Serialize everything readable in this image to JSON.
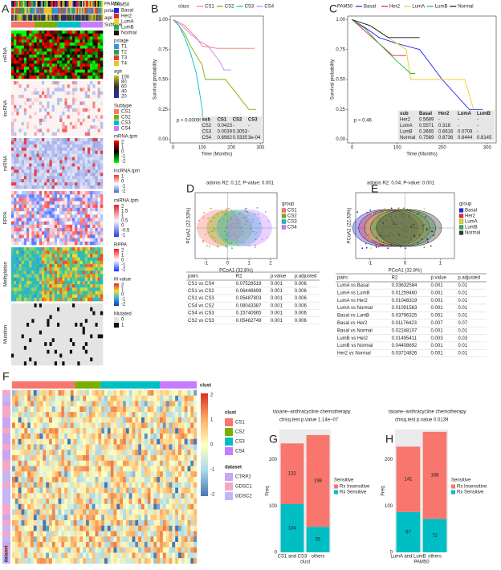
{
  "panels": [
    "A",
    "B",
    "C",
    "D",
    "E",
    "F",
    "G",
    "H"
  ],
  "heatmap_a": {
    "tracks": [
      "PAM50",
      "pstage",
      "age",
      "Subtype"
    ],
    "blocks": [
      "mRNA",
      "lncRNA",
      "miRNA",
      "RPPA",
      "Methylation",
      "Mutation"
    ],
    "legends": [
      {
        "title": "PAM50",
        "items": [
          {
            "label": "Basal",
            "color": "#2222ee"
          },
          {
            "label": "Her2",
            "color": "#e8242a"
          },
          {
            "label": "LumA",
            "color": "#f0d020"
          },
          {
            "label": "LumB",
            "color": "#2ab040"
          },
          {
            "label": "Normal",
            "color": "#111111"
          }
        ]
      },
      {
        "title": "pstage",
        "items": [
          {
            "label": "T1",
            "color": "#3a8fd8"
          },
          {
            "label": "T2",
            "color": "#2aa04a"
          },
          {
            "label": "T3",
            "color": "#e83a3a"
          },
          {
            "label": "T4",
            "color": "#f2c020"
          }
        ]
      },
      {
        "title": "age",
        "ticks": [
          100,
          80,
          60,
          40,
          20
        ],
        "colors": [
          "#c8c820",
          "#30303a",
          "#2a2aa8"
        ]
      },
      {
        "title": "Subtype",
        "items": [
          {
            "label": "CS1",
            "color": "#F8766D"
          },
          {
            "label": "CS2",
            "color": "#7CAE00"
          },
          {
            "label": "CS3",
            "color": "#00BFC4"
          },
          {
            "label": "CS4",
            "color": "#C77CFF"
          }
        ]
      },
      {
        "title": "mRNA.tpm",
        "ticks": [
          2,
          1,
          0,
          -1,
          -2
        ],
        "colors": [
          "#ff0000",
          "#000000",
          "#00ff00"
        ]
      },
      {
        "title": "lncRNA.tpm",
        "ticks": [
          1,
          0,
          -1,
          -2
        ],
        "colors": [
          "#f03030",
          "#ffffff",
          "#3a6ad8"
        ]
      },
      {
        "title": "miRNA.tpm",
        "ticks": [
          2,
          1.5,
          1,
          0.5,
          0,
          -0.5,
          -1
        ],
        "colors": [
          "#e82020",
          "#f4f4ff",
          "#2a40d0"
        ]
      },
      {
        "title": "RPPA",
        "ticks": [
          2,
          1,
          0,
          -1,
          -2
        ],
        "colors": [
          "#ff1010",
          "#ffffff",
          "#1030ff"
        ]
      },
      {
        "title": "M value",
        "ticks": [
          2,
          1,
          0,
          -1,
          -2
        ],
        "colors": [
          "#e82020",
          "#f0e030",
          "#30b0e0",
          "#2030c0"
        ]
      },
      {
        "title": "Mutated",
        "items": [
          {
            "label": "0",
            "color": "#e4e4e4"
          },
          {
            "label": "1",
            "color": "#111111"
          }
        ]
      }
    ]
  },
  "chart_data": [
    {
      "type": "line",
      "legend_title": "class",
      "xlabel": "Time (Months)",
      "ylabel": "Survival probability",
      "annotation": "p = 0.00099",
      "xlim": [
        -10,
        310
      ],
      "ylim": [
        -0.03,
        1.03
      ],
      "xticks": [
        0,
        100,
        200,
        300
      ],
      "yticks": [
        {
          "value": 0,
          "label": "0.00"
        },
        {
          "value": 0.25,
          "label": "0.25"
        },
        {
          "value": 0.5,
          "label": "0.50"
        },
        {
          "value": 0.75,
          "label": "0.75"
        },
        {
          "value": 1,
          "label": "1.00"
        }
      ],
      "series": [
        {
          "name": "CS1",
          "color": "#F8766D",
          "x": [
            0,
            20,
            40,
            60,
            80,
            100,
            150,
            280
          ],
          "values": [
            1,
            0.98,
            0.95,
            0.9,
            0.85,
            0.78,
            0.76,
            0.76
          ]
        },
        {
          "name": "CS2",
          "color": "#7CAE00",
          "x": [
            0,
            20,
            40,
            60,
            80,
            100,
            110,
            180,
            260,
            285
          ],
          "values": [
            1,
            0.95,
            0.88,
            0.78,
            0.7,
            0.62,
            0.5,
            0.5,
            0.25,
            0.25
          ]
        },
        {
          "name": "CS3",
          "color": "#00BFC4",
          "x": [
            0,
            20,
            40,
            60,
            80,
            90,
            100,
            105
          ],
          "values": [
            1,
            0.95,
            0.85,
            0.72,
            0.55,
            0.4,
            0.25,
            0
          ]
        },
        {
          "name": "CS4",
          "color": "#C77CFF",
          "x": [
            0,
            30,
            60,
            90,
            120,
            160,
            175,
            200
          ],
          "values": [
            1,
            0.95,
            0.88,
            0.82,
            0.78,
            0.65,
            0.58,
            0.58
          ]
        }
      ],
      "table": {
        "columns": [
          "sub",
          "CS1",
          "CS2",
          "CS3"
        ],
        "rows": [
          [
            "CS2",
            "0.0423",
            "-",
            "-"
          ],
          [
            "CS3",
            "0.0039",
            "0.3053",
            "-"
          ],
          [
            "CS4",
            "0.6982",
            "0.0335",
            "3e-04"
          ]
        ]
      }
    },
    {
      "type": "line",
      "legend_title": "PAM50",
      "xlabel": "Time (Months)",
      "ylabel": "Survival probability",
      "annotation": "p = 0.46",
      "xlim": [
        -10,
        320
      ],
      "ylim": [
        -0.03,
        1.03
      ],
      "xticks": [
        0,
        100,
        200,
        300
      ],
      "yticks": [
        {
          "value": 0,
          "label": "0.00"
        },
        {
          "value": 0.25,
          "label": "0.25"
        },
        {
          "value": 0.5,
          "label": "0.50"
        },
        {
          "value": 0.75,
          "label": "0.75"
        },
        {
          "value": 1,
          "label": "1.00"
        }
      ],
      "series": [
        {
          "name": "Basal",
          "color": "#2222ee",
          "x": [
            0,
            30,
            60,
            100,
            150,
            200,
            260,
            290
          ],
          "values": [
            1,
            0.93,
            0.85,
            0.8,
            0.75,
            0.5,
            0.25,
            0.25
          ]
        },
        {
          "name": "Her2",
          "color": "#e8242a",
          "x": [
            0,
            30,
            60,
            90,
            120
          ],
          "values": [
            1,
            0.9,
            0.8,
            0.7,
            0.7
          ]
        },
        {
          "name": "LumA",
          "color": "#e8d020",
          "x": [
            0,
            40,
            80,
            120,
            130,
            250,
            270
          ],
          "values": [
            1,
            0.95,
            0.85,
            0.75,
            0.5,
            0.5,
            0.25
          ]
        },
        {
          "name": "LumB",
          "color": "#2ab040",
          "x": [
            0,
            30,
            60,
            100,
            130,
            140
          ],
          "values": [
            1,
            0.92,
            0.8,
            0.65,
            0.55,
            0.55
          ]
        },
        {
          "name": "Normal",
          "color": "#111111",
          "x": [
            0,
            40,
            80,
            120,
            150
          ],
          "values": [
            1,
            0.95,
            0.85,
            0.85,
            0.85
          ]
        }
      ],
      "table": {
        "columns": [
          "sub",
          "Basal",
          "Her2",
          "LumA",
          "LumB"
        ],
        "rows": [
          [
            "Her2",
            "0.5689",
            "-",
            "-",
            "-"
          ],
          [
            "LumA",
            "0.5571",
            "0.318",
            "-",
            "-"
          ],
          [
            "LumB",
            "0.3665",
            "0.6616",
            "0.0709",
            "-"
          ],
          [
            "Normal",
            "0.7569",
            "0.8736",
            "0.6444",
            "0.8145"
          ]
        ]
      }
    },
    {
      "type": "bar",
      "title": "taxane−anthracycline chemotherapy",
      "subtitle": "chisq.test p.value 1.14e−07",
      "categories": [
        "CS1 and CS3",
        "others"
      ],
      "xlabel": "clust",
      "ylabel": "Freq",
      "ylim": [
        0,
        265
      ],
      "yticks": [
        0,
        100,
        200
      ],
      "legend_title": "Sensitive",
      "series": [
        {
          "name": "Rx Insensitive",
          "color": "#F8766D",
          "values": [
            131,
            198
          ]
        },
        {
          "name": "Rx Sensitive",
          "color": "#00BFC4",
          "values": [
            104,
            55
          ]
        }
      ]
    },
    {
      "type": "bar",
      "title": "taxane−anthracycline chemotherapy",
      "subtitle": "chisq.test p.value 0.0139",
      "categories": [
        "LumA and LumB",
        "others"
      ],
      "xlabel": "PAM50",
      "ylabel": "Freq",
      "ylim": [
        0,
        265
      ],
      "yticks": [
        0,
        100,
        200
      ],
      "legend_title": "Sensitive",
      "series": [
        {
          "name": "Rx Insensitive",
          "color": "#F8766D",
          "values": [
            141,
            188
          ]
        },
        {
          "name": "Rx Sensitive",
          "color": "#00BFC4",
          "values": [
            87,
            72
          ]
        }
      ]
    }
  ],
  "pcoa": [
    {
      "title": "adonis R2: 0.12; P-value: 0.001",
      "xlabel": "PCoA1 (32.8%)",
      "ylabel": "PCoA2 (22.53%)",
      "xlim": [
        -1.5,
        2.3
      ],
      "xticks": [
        -1,
        0,
        1,
        2
      ],
      "legend_title": "group",
      "groups": [
        {
          "name": "CS1",
          "color": "#F8766D"
        },
        {
          "name": "CS2",
          "color": "#7CAE00"
        },
        {
          "name": "CS3",
          "color": "#00BFC4"
        },
        {
          "name": "CS4",
          "color": "#C77CFF"
        }
      ],
      "table": {
        "columns": [
          "pairs",
          "R2",
          "p.value",
          "p.adjusted"
        ],
        "rows": [
          [
            "CS1 vs CS4",
            "0.07528518",
            "0.001",
            "0.006"
          ],
          [
            "CS1 vs CS2",
            "0.06448699",
            "0.001",
            "0.006"
          ],
          [
            "CS1 vs CS3",
            "0.05487803",
            "0.001",
            "0.006"
          ],
          [
            "CS4 vs CS2",
            "0.08043387",
            "0.001",
            "0.006"
          ],
          [
            "CS4 vs CS3",
            "0.15740665",
            "0.001",
            "0.006"
          ],
          [
            "CS2 vs CS3",
            "0.05482749",
            "0.001",
            "0.006"
          ]
        ]
      }
    },
    {
      "title": "adonis R2: 0.04; P-value: 0.001",
      "xlabel": "PCoA1 (32.8%)",
      "ylabel": "PCoA2 (22.53%)",
      "xlim": [
        -1.4,
        1.4
      ],
      "xticks": [
        -1,
        0,
        1
      ],
      "legend_title": "group",
      "groups": [
        {
          "name": "Basal",
          "color": "#2222ee"
        },
        {
          "name": "Her2",
          "color": "#e8242a"
        },
        {
          "name": "LumA",
          "color": "#e8d020"
        },
        {
          "name": "LumB",
          "color": "#2ab040"
        },
        {
          "name": "Normal",
          "color": "#333333"
        }
      ],
      "table": {
        "columns": [
          "pairs",
          "R2",
          "p.value",
          "p.adjusted"
        ],
        "rows": [
          [
            "LumA vs Basal",
            "0.03632584",
            "0.001",
            "0.01"
          ],
          [
            "LumA vs LumB",
            "0.01259460",
            "0.001",
            "0.01"
          ],
          [
            "LumA vs Her2",
            "0.01048319",
            "0.001",
            "0.01"
          ],
          [
            "LumA vs Normal",
            "0.01091563",
            "0.001",
            "0.01"
          ],
          [
            "Basal vs LumB",
            "0.03796325",
            "0.001",
            "0.01"
          ],
          [
            "Basal vs Her2",
            "0.01176423",
            "0.007",
            "0.07"
          ],
          [
            "Basal vs Normal",
            "0.02248107",
            "0.001",
            "0.01"
          ],
          [
            "LumB vs Her2",
            "0.01495411",
            "0.003",
            "0.03"
          ],
          [
            "LumB vs Normal",
            "0.04408692",
            "0.001",
            "0.01"
          ],
          [
            "Her2 vs Normal",
            "0.03724826",
            "0.001",
            "0.01"
          ]
        ]
      }
    }
  ],
  "heatmap_f": {
    "row_annotation": "dataset",
    "col_annotation": "clust",
    "scale_ticks": [
      2,
      1,
      0,
      -1,
      -2
    ],
    "legends": [
      {
        "title": "clust",
        "items": [
          {
            "label": "CS1",
            "color": "#F8766D"
          },
          {
            "label": "CS2",
            "color": "#7CAE00"
          },
          {
            "label": "CS3",
            "color": "#00BFC4"
          },
          {
            "label": "CS4",
            "color": "#C77CFF"
          }
        ]
      },
      {
        "title": "dataset",
        "items": [
          {
            "label": "CTRP2",
            "color": "#c9a6ee"
          },
          {
            "label": "GDSC1",
            "color": "#f6a6c6"
          },
          {
            "label": "GDSC2",
            "color": "#c4b6f4"
          }
        ]
      }
    ]
  }
}
